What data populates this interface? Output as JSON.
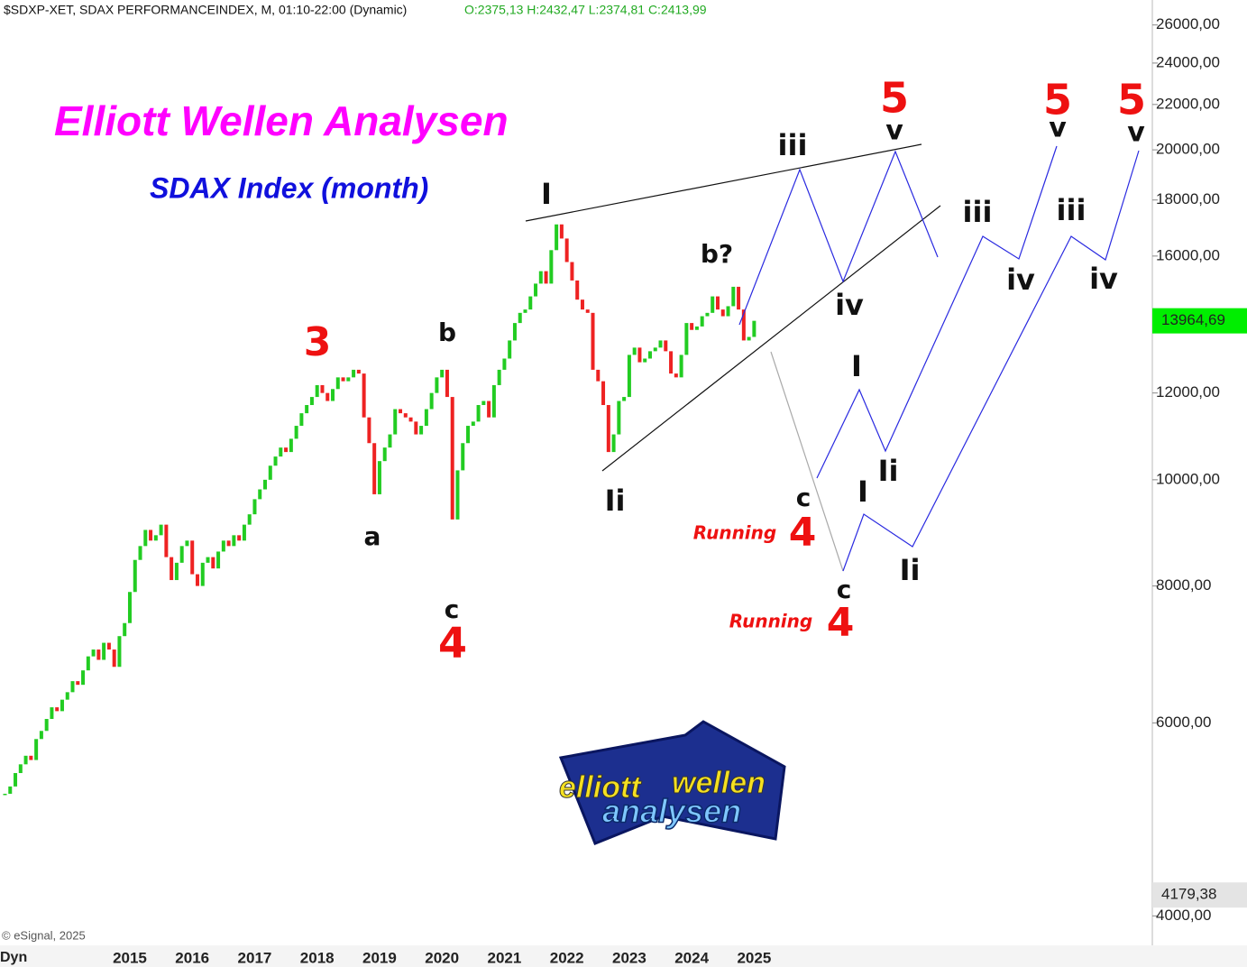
{
  "chart_data": {
    "type": "candlestick",
    "header": "$SDXP-XET, SDAX PERFORMANCEINDEX, M, 01:10-22:00 (Dynamic)",
    "ohlc_text": "O:2375,13 H:2432,47 L:2374,81 C:2413,99",
    "title": "Elliott Wellen Analysen",
    "subtitle": "SDAX Index (month)",
    "copyright": "© eSignal, 2025",
    "mode_label": "Dyn",
    "log_scale": true,
    "up_color": "#22cc22",
    "down_color": "#ee2222",
    "categories": [
      null,
      null,
      null,
      null,
      null,
      null,
      null,
      null,
      null,
      null,
      null,
      null,
      null,
      null,
      null,
      null,
      null,
      null,
      null,
      null,
      null,
      null,
      null,
      null,
      "2015",
      null,
      null,
      null,
      null,
      null,
      null,
      null,
      null,
      null,
      null,
      null,
      "2016",
      null,
      null,
      null,
      null,
      null,
      null,
      null,
      null,
      null,
      null,
      null,
      "2017",
      null,
      null,
      null,
      null,
      null,
      null,
      null,
      null,
      null,
      null,
      null,
      "2018",
      null,
      null,
      null,
      null,
      null,
      null,
      null,
      null,
      null,
      null,
      null,
      "2019",
      null,
      null,
      null,
      null,
      null,
      null,
      null,
      null,
      null,
      null,
      null,
      "2020",
      null,
      null,
      null,
      null,
      null,
      null,
      null,
      null,
      null,
      null,
      null,
      "2021",
      null,
      null,
      null,
      null,
      null,
      null,
      null,
      null,
      null,
      null,
      null,
      "2022",
      null,
      null,
      null,
      null,
      null,
      null,
      null,
      null,
      null,
      null,
      null,
      "2023",
      null,
      null,
      null,
      null,
      null,
      null,
      null,
      null,
      null,
      null,
      null,
      "2024",
      null,
      null,
      null,
      null,
      null,
      null,
      null,
      null,
      null,
      null,
      null,
      "2025"
    ],
    "series": [
      {
        "name": "SDAX",
        "values": [
          5170,
          5250,
          5400,
          5500,
          5600,
          5550,
          5800,
          5900,
          6050,
          6200,
          6150,
          6300,
          6400,
          6550,
          6500,
          6700,
          6900,
          7000,
          6850,
          7100,
          7000,
          6750,
          7200,
          7400,
          7900,
          8450,
          8700,
          9000,
          8800,
          8900,
          9100,
          8500,
          8100,
          8400,
          8700,
          8800,
          8200,
          8000,
          8400,
          8500,
          8300,
          8600,
          8800,
          8700,
          8900,
          8800,
          9100,
          9300,
          9600,
          9800,
          10000,
          10300,
          10500,
          10700,
          10600,
          10900,
          11200,
          11500,
          11700,
          11900,
          12200,
          12000,
          11800,
          12100,
          12400,
          12300,
          12400,
          12600,
          12500,
          11400,
          10800,
          9700,
          10400,
          10700,
          11000,
          11600,
          11500,
          11400,
          11300,
          11000,
          11200,
          11600,
          12000,
          12400,
          12600,
          11900,
          9200,
          10200,
          10800,
          11200,
          11300,
          11700,
          11800,
          11400,
          12200,
          12600,
          12900,
          13400,
          13900,
          14200,
          14300,
          14700,
          15100,
          15500,
          15100,
          16200,
          17100,
          16600,
          15800,
          15200,
          14600,
          14300,
          14200,
          12600,
          12300,
          11700,
          10600,
          11000,
          11800,
          11900,
          13000,
          13200,
          12800,
          12900,
          13100,
          13200,
          13400,
          13100,
          12500,
          12400,
          13000,
          13900,
          13700,
          13800,
          14100,
          14200,
          14700,
          14300,
          14100,
          14400,
          15000,
          14300,
          13400,
          13500,
          13964.69
        ]
      }
    ],
    "ylim": [
      3760,
      27400
    ],
    "yticks": [
      {
        "value": 4000,
        "label": "4000,00"
      },
      {
        "value": 6000,
        "label": "6000,00"
      },
      {
        "value": 8000,
        "label": "8000,00"
      },
      {
        "value": 10000,
        "label": "10000,00"
      },
      {
        "value": 12000,
        "label": "12000,00"
      },
      {
        "value": 16000,
        "label": "16000,00"
      },
      {
        "value": 18000,
        "label": "18000,00"
      },
      {
        "value": 20000,
        "label": "20000,00"
      },
      {
        "value": 22000,
        "label": "22000,00"
      },
      {
        "value": 24000,
        "label": "24000,00"
      },
      {
        "value": 26000,
        "label": "26000,00"
      }
    ],
    "price_tags": [
      {
        "value": 13964.69,
        "label": "13964,69",
        "color": "#00ee00"
      },
      {
        "value": 4179.38,
        "label": "4179,38",
        "color": "#e4e4e4"
      }
    ],
    "annotations": [
      "3",
      "a",
      "b",
      "c",
      "4",
      "I",
      "Ii",
      "b?",
      "iii",
      "5",
      "v",
      "iv",
      "c",
      "Running",
      "4",
      "I",
      "Ii",
      "I",
      "c",
      "Ii",
      "Running",
      "4",
      "iii",
      "iv",
      "5",
      "v",
      "iii",
      "iv",
      "5",
      "v"
    ],
    "logo": [
      "elliott",
      "wellen",
      "analysen"
    ]
  }
}
